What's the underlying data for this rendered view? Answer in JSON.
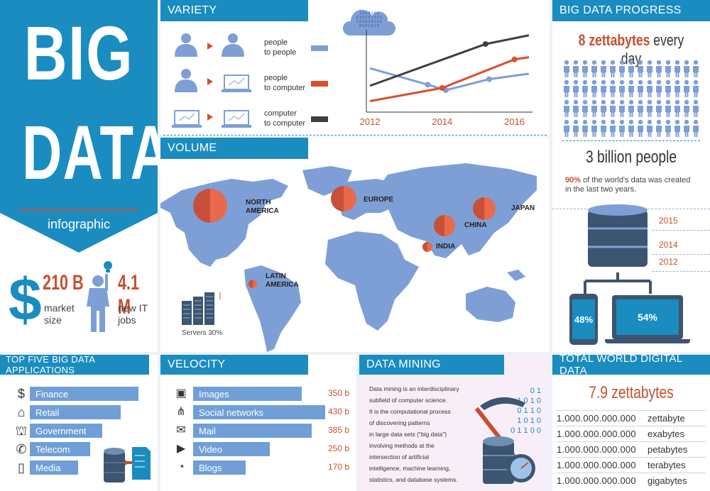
{
  "hero": {
    "big": "BIG",
    "data": "DATA",
    "subtitle": "infographic"
  },
  "market": {
    "value": "210 B",
    "label1": "market",
    "label2": "size"
  },
  "jobs": {
    "value": "4.1 M",
    "label1": "new IT",
    "label2": "jobs"
  },
  "top_five": {
    "title": "TOP FIVE BIG DATA APPLICATIONS",
    "items": [
      {
        "label": "Finance",
        "icon": "dollar-icon",
        "level": 0.9
      },
      {
        "label": "Retail",
        "icon": "shop-icon",
        "level": 0.75
      },
      {
        "label": "Government",
        "icon": "building-icon",
        "level": 0.6
      },
      {
        "label": "Telecom",
        "icon": "phone-icon",
        "level": 0.5
      },
      {
        "label": "Media",
        "icon": "tablet-icon",
        "level": 0.4
      }
    ]
  },
  "variety": {
    "title": "VARIETY",
    "rows": [
      {
        "line1": "people",
        "line2": "to people",
        "color": "#7e9fd6"
      },
      {
        "line1": "people",
        "line2": "to computer",
        "color": "#d94f2a"
      },
      {
        "line1": "computer",
        "line2": "to computer",
        "color": "#404040"
      }
    ],
    "cloud_text": [
      "1 0 1 0 1 0 1",
      "0 1 0 1 0 1 0 1 0",
      "1 0 1 0 1 0 1 0 1",
      "0 1 0 1 0 1 0"
    ]
  },
  "chart_data": {
    "type": "line",
    "x_ticks": [
      "2012",
      "2014",
      "2016"
    ],
    "series": [
      {
        "color": "#7e9fd6",
        "values": [
          [
            2012,
            40
          ],
          [
            2013.6,
            25
          ],
          [
            2014.1,
            20
          ],
          [
            2015.3,
            30
          ],
          [
            2016.4,
            35
          ]
        ]
      },
      {
        "color": "#d94f2a",
        "values": [
          [
            2012,
            10
          ],
          [
            2014,
            22
          ],
          [
            2016,
            48
          ],
          [
            2016.4,
            50
          ]
        ]
      },
      {
        "color": "#404040",
        "values": [
          [
            2012,
            24
          ],
          [
            2015.2,
            62
          ],
          [
            2016.4,
            70
          ]
        ]
      }
    ]
  },
  "volume": {
    "title": "VOLUME",
    "regions": [
      {
        "name1": "NORTH",
        "name2": "AMERICA"
      },
      {
        "name1": "EUROPE",
        "name2": ""
      },
      {
        "name1": "JAPAN",
        "name2": ""
      },
      {
        "name1": "CHINA",
        "name2": ""
      },
      {
        "name1": "INDIA",
        "name2": ""
      },
      {
        "name1": "LATIN",
        "name2": "AMERICA"
      }
    ],
    "servers_label": "Servers 30%"
  },
  "velocity": {
    "title": "VELOCITY",
    "items": [
      {
        "label": "Images",
        "value": "350 b",
        "icon": "image-icon",
        "level": 0.82
      },
      {
        "label": "Social networks",
        "value": "430 b",
        "icon": "share-icon",
        "level": 1.0
      },
      {
        "label": "Mail",
        "value": "385 b",
        "icon": "mail-icon",
        "level": 0.9
      },
      {
        "label": "Video",
        "value": "250 b",
        "icon": "play-icon",
        "level": 0.58
      },
      {
        "label": "Blogs",
        "value": "170 b",
        "icon": "rss-icon",
        "level": 0.4
      }
    ]
  },
  "mining": {
    "title": "DATA MINING",
    "lines": [
      "Data mining is an interdisciplinary",
      "subfield of computer science.",
      "It is the computational process",
      "of discovering patterns",
      "in large data sets (\"big data\")",
      "involving methods at the",
      "intersection of artificial",
      "intelligence, machine learning,",
      "statistics, and database systems."
    ],
    "binary": [
      "0  1",
      "1  0  1  0",
      "0  1  1  0",
      "1  0  1  0",
      "0  1  1  0  0"
    ]
  },
  "progress": {
    "title": "BIG DATA PROGRESS",
    "zb_value": "8 zettabytes",
    "zb_rest": " every day",
    "people": "3 billion people",
    "pct": "90%",
    "pct_text": " of  the world's data was created",
    "pct_text2": "in the last two years.",
    "years": [
      "2015",
      "2014",
      "2012"
    ],
    "phone_pct": "48%",
    "laptop_pct": "54%"
  },
  "total": {
    "title": "TOTAL WORLD DIGITAL DATA",
    "value": "7.9 zettabytes",
    "rows": [
      {
        "num": "1.000.000.000.000",
        "unit": "zettabyte"
      },
      {
        "num": "1.000.000.000.000",
        "unit": "exabytes"
      },
      {
        "num": "1.000.000.000.000",
        "unit": "petabytes"
      },
      {
        "num": "1.000.000.000.000",
        "unit": "terabytes"
      },
      {
        "num": "1.000.000.000.000",
        "unit": "gigabytes"
      }
    ]
  }
}
